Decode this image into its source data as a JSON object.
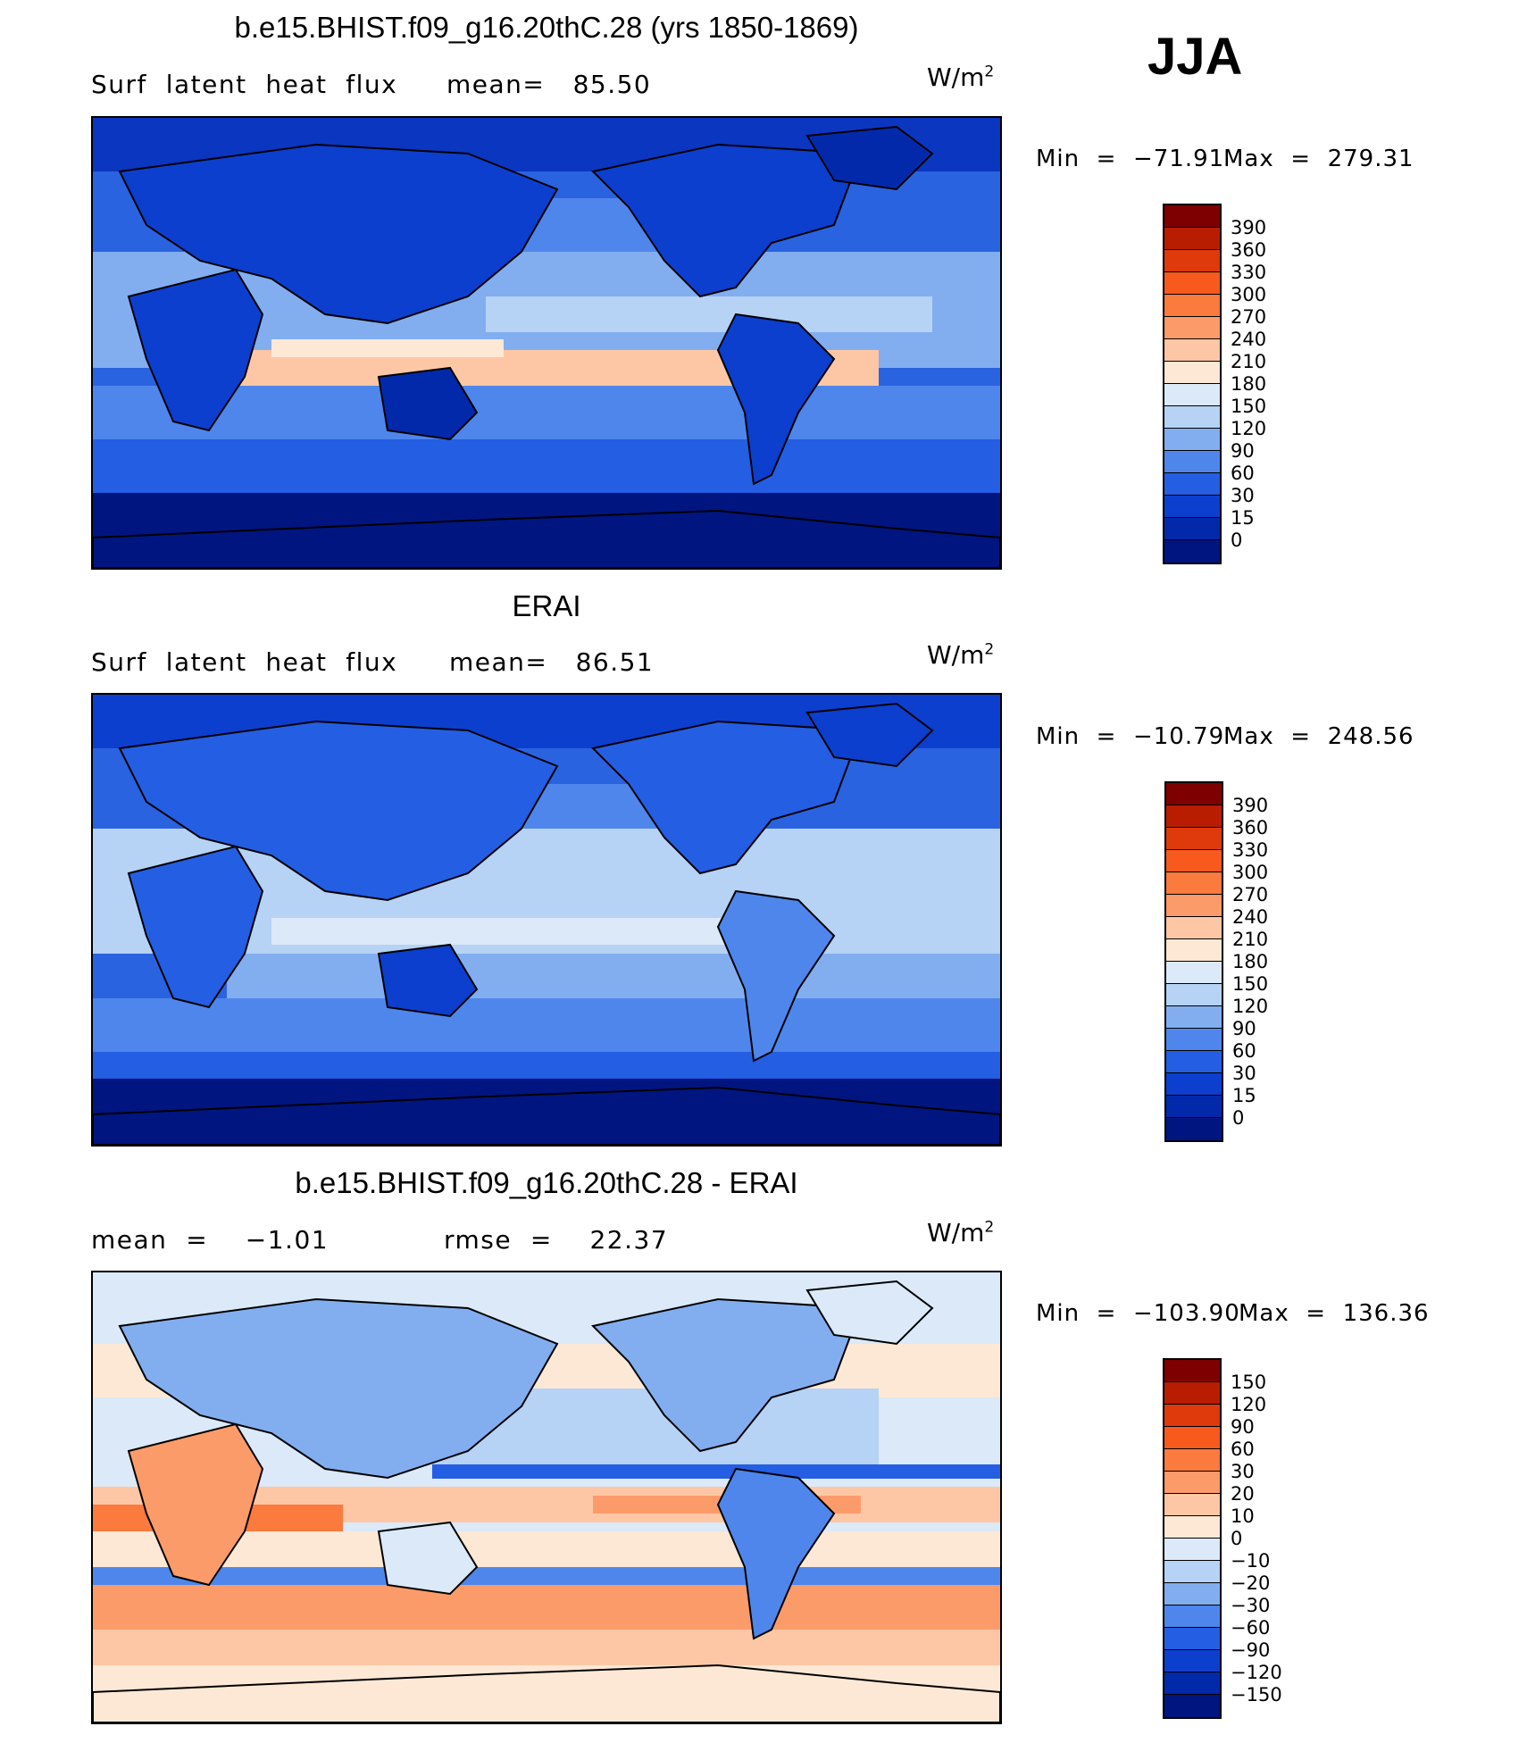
{
  "season": "JJA",
  "units": {
    "base": "W/m",
    "exp": "2"
  },
  "panels": [
    {
      "title": "b.e15.BHIST.f09_g16.20thC.28 (yrs 1850-1869)",
      "left_text": "Surf  latent  heat  flux",
      "right_text": "mean=   85.50",
      "min_label": "Min  =  −71.91",
      "max_label": "Max  =  279.31",
      "palette": "abs"
    },
    {
      "title": "ERAI",
      "left_text": "Surf  latent  heat  flux",
      "right_text": "mean=   86.51",
      "min_label": "Min  =  −10.79",
      "max_label": "Max  =  248.56",
      "palette": "abs"
    },
    {
      "title": "b.e15.BHIST.f09_g16.20thC.28 - ERAI",
      "left_text": "mean  =    −1.01",
      "right_text": "rmse  =    22.37",
      "min_label": "Min  =  −103.90",
      "max_label": "Max  =  136.36",
      "palette": "diff"
    }
  ],
  "colorbars": {
    "abs": {
      "labels": [
        "390",
        "360",
        "330",
        "300",
        "270",
        "240",
        "210",
        "180",
        "150",
        "120",
        "90",
        "60",
        "30",
        "15",
        "0"
      ],
      "colors": [
        "#7f0000",
        "#b81d02",
        "#de3a0b",
        "#f85a1e",
        "#fb7a3e",
        "#fc9b6a",
        "#fdc7a5",
        "#fde8d5",
        "#dbe9f8",
        "#b6d2f5",
        "#82aef0",
        "#4f86eb",
        "#245ee3",
        "#0c3fce",
        "#0329ab",
        "#011580"
      ]
    },
    "diff": {
      "labels": [
        "150",
        "120",
        "90",
        "60",
        "30",
        "20",
        "10",
        "0",
        "−10",
        "−20",
        "−30",
        "−60",
        "−90",
        "−120",
        "−150"
      ],
      "colors": [
        "#7f0000",
        "#b81d02",
        "#de3a0b",
        "#f85a1e",
        "#fb7a3e",
        "#fc9b6a",
        "#fdc7a5",
        "#fde8d5",
        "#dbe9f8",
        "#b6d2f5",
        "#82aef0",
        "#4f86eb",
        "#245ee3",
        "#0c3fce",
        "#0329ab",
        "#011580"
      ]
    }
  }
}
